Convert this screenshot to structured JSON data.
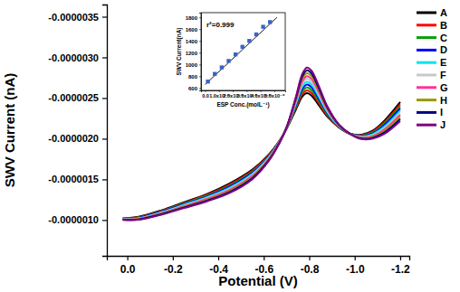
{
  "chart_data": [
    {
      "type": "line",
      "x_label": "Potential (V)",
      "y_label": "SWV Current (nA)",
      "x": [
        0.02,
        -0.05,
        -0.15,
        -0.25,
        -0.35,
        -0.45,
        -0.55,
        -0.62,
        -0.67,
        -0.7,
        -0.74,
        -0.77,
        -0.79,
        -0.81,
        -0.84,
        -0.88,
        -0.93,
        -0.98,
        -1.03,
        -1.08,
        -1.13,
        -1.2
      ],
      "series": [
        {
          "name": "A",
          "color": "#000000",
          "values": [
            -1.02e-06,
            -1.04e-06,
            -1.12e-06,
            -1.22e-06,
            -1.32e-06,
            -1.45e-06,
            -1.62e-06,
            -1.8e-06,
            -1.98e-06,
            -2.12e-06,
            -2.35e-06,
            -2.52e-06,
            -2.56e-06,
            -2.53e-06,
            -2.42e-06,
            -2.27e-06,
            -2.14e-06,
            -2.06e-06,
            -2.05e-06,
            -2.1e-06,
            -2.22e-06,
            -2.45e-06
          ]
        },
        {
          "name": "B",
          "color": "#ff0000",
          "values": [
            -1.018e-06,
            -1.036e-06,
            -1.114e-06,
            -1.212e-06,
            -1.31e-06,
            -1.437e-06,
            -1.607e-06,
            -1.791e-06,
            -1.977e-06,
            -2.122e-06,
            -2.367e-06,
            -2.551e-06,
            -2.595e-06,
            -2.564e-06,
            -2.447e-06,
            -2.284e-06,
            -2.144e-06,
            -2.06e-06,
            -2.044e-06,
            -2.089e-06,
            -2.202e-06,
            -2.424e-06
          ]
        },
        {
          "name": "C",
          "color": "#00a000",
          "values": [
            -1.016e-06,
            -1.032e-06,
            -1.108e-06,
            -1.204e-06,
            -1.3e-06,
            -1.424e-06,
            -1.594e-06,
            -1.782e-06,
            -1.974e-06,
            -2.124e-06,
            -2.384e-06,
            -2.582e-06,
            -2.63e-06,
            -2.598e-06,
            -2.474e-06,
            -2.298e-06,
            -2.148e-06,
            -2.06e-06,
            -2.038e-06,
            -2.078e-06,
            -2.184e-06,
            -2.398e-06
          ]
        },
        {
          "name": "D",
          "color": "#0000ff",
          "values": [
            -1.014e-06,
            -1.028e-06,
            -1.102e-06,
            -1.196e-06,
            -1.29e-06,
            -1.411e-06,
            -1.581e-06,
            -1.773e-06,
            -1.971e-06,
            -2.126e-06,
            -2.401e-06,
            -2.613e-06,
            -2.665e-06,
            -2.632e-06,
            -2.501e-06,
            -2.312e-06,
            -2.152e-06,
            -2.06e-06,
            -2.032e-06,
            -2.067e-06,
            -2.166e-06,
            -2.372e-06
          ]
        },
        {
          "name": "E",
          "color": "#00e5ee",
          "values": [
            -1.012e-06,
            -1.024e-06,
            -1.096e-06,
            -1.188e-06,
            -1.28e-06,
            -1.398e-06,
            -1.568e-06,
            -1.764e-06,
            -1.968e-06,
            -2.128e-06,
            -2.418e-06,
            -2.644e-06,
            -2.7e-06,
            -2.666e-06,
            -2.528e-06,
            -2.326e-06,
            -2.156e-06,
            -2.06e-06,
            -2.026e-06,
            -2.056e-06,
            -2.148e-06,
            -2.346e-06
          ]
        },
        {
          "name": "F",
          "color": "#c8c8c8",
          "values": [
            -1.01e-06,
            -1.02e-06,
            -1.09e-06,
            -1.18e-06,
            -1.27e-06,
            -1.385e-06,
            -1.555e-06,
            -1.755e-06,
            -1.965e-06,
            -2.13e-06,
            -2.435e-06,
            -2.675e-06,
            -2.735e-06,
            -2.7e-06,
            -2.555e-06,
            -2.34e-06,
            -2.16e-06,
            -2.06e-06,
            -2.02e-06,
            -2.045e-06,
            -2.13e-06,
            -2.32e-06
          ]
        },
        {
          "name": "G",
          "color": "#ff3399",
          "values": [
            -1.008e-06,
            -1.016e-06,
            -1.084e-06,
            -1.172e-06,
            -1.26e-06,
            -1.372e-06,
            -1.542e-06,
            -1.746e-06,
            -1.962e-06,
            -2.132e-06,
            -2.452e-06,
            -2.706e-06,
            -2.77e-06,
            -2.734e-06,
            -2.582e-06,
            -2.354e-06,
            -2.164e-06,
            -2.06e-06,
            -2.014e-06,
            -2.034e-06,
            -2.112e-06,
            -2.294e-06
          ]
        },
        {
          "name": "H",
          "color": "#9a9a00",
          "values": [
            -1.006e-06,
            -1.012e-06,
            -1.078e-06,
            -1.164e-06,
            -1.25e-06,
            -1.359e-06,
            -1.529e-06,
            -1.737e-06,
            -1.959e-06,
            -2.134e-06,
            -2.469e-06,
            -2.737e-06,
            -2.805e-06,
            -2.768e-06,
            -2.609e-06,
            -2.368e-06,
            -2.168e-06,
            -2.06e-06,
            -2.008e-06,
            -2.023e-06,
            -2.094e-06,
            -2.268e-06
          ]
        },
        {
          "name": "I",
          "color": "#000080",
          "values": [
            -1.004e-06,
            -1.008e-06,
            -1.072e-06,
            -1.156e-06,
            -1.24e-06,
            -1.346e-06,
            -1.516e-06,
            -1.728e-06,
            -1.956e-06,
            -2.136e-06,
            -2.486e-06,
            -2.768e-06,
            -2.84e-06,
            -2.802e-06,
            -2.636e-06,
            -2.382e-06,
            -2.172e-06,
            -2.06e-06,
            -2.002e-06,
            -2.012e-06,
            -2.076e-06,
            -2.242e-06
          ]
        },
        {
          "name": "J",
          "color": "#800080",
          "values": [
            -1.002e-06,
            -1.004e-06,
            -1.066e-06,
            -1.148e-06,
            -1.23e-06,
            -1.333e-06,
            -1.503e-06,
            -1.719e-06,
            -1.953e-06,
            -2.138e-06,
            -2.503e-06,
            -2.799e-06,
            -2.875e-06,
            -2.836e-06,
            -2.663e-06,
            -2.396e-06,
            -2.176e-06,
            -2.06e-06,
            -1.996e-06,
            -2.001e-06,
            -2.058e-06,
            -2.216e-06
          ]
        }
      ],
      "xlim": [
        0.09,
        -1.24
      ],
      "ylim": [
        -5.6e-07,
        -3.65e-06
      ],
      "xticks": [
        {
          "value": 0,
          "label": "0.0"
        },
        -0.2,
        -0.4,
        -0.6,
        -0.8,
        {
          "value": -1,
          "label": "-1.0"
        },
        -1.2
      ],
      "yticks": [
        {
          "value": -1e-06,
          "label": "-0.0000010"
        },
        {
          "value": -1.5e-06,
          "label": "-0.0000015"
        },
        {
          "value": -2e-06,
          "label": "-0.0000020"
        },
        {
          "value": -2.5e-06,
          "label": "-0.0000025"
        },
        {
          "value": -3e-06,
          "label": "-0.0000030"
        },
        {
          "value": -3.5e-06,
          "label": "-0.0000035"
        }
      ],
      "legend": "right"
    },
    {
      "type": "scatter",
      "x_label": "ESP Conc.(molL⁻¹)",
      "y_label": "SWV Current(nA)",
      "annotation": "r²=0.999",
      "x": [
        2e-07,
        7e-07,
        1.2e-06,
        1.7e-06,
        2.2e-06,
        2.7e-06,
        3.2e-06,
        3.7e-06,
        4.2e-06,
        4.7e-06
      ],
      "values": [
        710,
        840,
        950,
        1060,
        1170,
        1300,
        1400,
        1510,
        1640,
        1720
      ],
      "fit_line": {
        "x": [
          0,
          5.2e-06
        ],
        "y": [
          660,
          1800
        ]
      },
      "color": "#3a62c8",
      "marker": "square",
      "xlim": [
        -3e-07,
        5.8e-06
      ],
      "ylim": [
        560,
        1880
      ],
      "xticks": [
        {
          "value": 0,
          "label": "0.0"
        },
        {
          "value": 1e-06,
          "label": "1.0x10⁻⁶"
        },
        {
          "value": 2e-06,
          "label": "2.0x10⁻⁶"
        },
        {
          "value": 3e-06,
          "label": "3.0x10⁻⁶"
        },
        {
          "value": 4e-06,
          "label": "4.0x10⁻⁶"
        },
        {
          "value": 5e-06,
          "label": "5.0x10⁻⁶"
        }
      ],
      "yticks": [
        600,
        800,
        1000,
        1200,
        1400,
        1600,
        1800
      ]
    }
  ]
}
